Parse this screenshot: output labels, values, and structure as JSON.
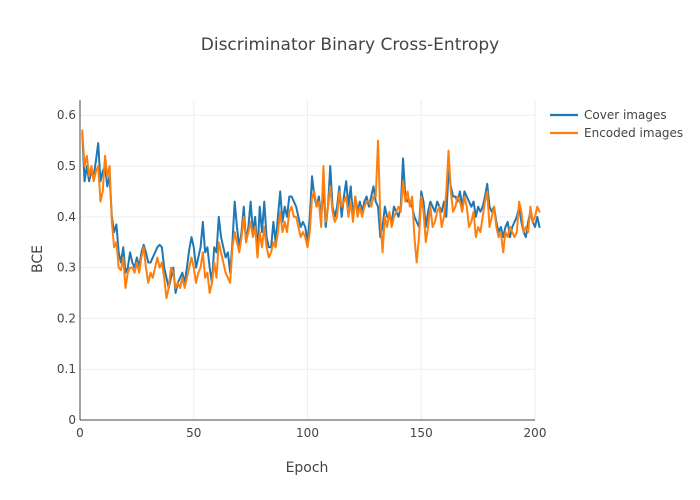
{
  "chart_data": {
    "type": "line",
    "title": "Discriminator Binary Cross-Entropy",
    "xlabel": "Epoch",
    "ylabel": "BCE",
    "xlim": [
      0,
      200
    ],
    "ylim": [
      0,
      0.63
    ],
    "x_ticks": [
      "0",
      "50",
      "100",
      "150",
      "200"
    ],
    "y_ticks": [
      "0",
      "0.1",
      "0.2",
      "0.3",
      "0.4",
      "0.5",
      "0.6"
    ],
    "grid": true,
    "legend_position": "top-right",
    "series": [
      {
        "name": "Cover images",
        "color": "#1f77b4",
        "values": [
          0.565,
          0.47,
          0.5,
          0.47,
          0.49,
          0.48,
          0.51,
          0.545,
          0.47,
          0.49,
          0.5,
          0.46,
          0.48,
          0.4,
          0.37,
          0.385,
          0.33,
          0.31,
          0.34,
          0.29,
          0.3,
          0.33,
          0.31,
          0.3,
          0.32,
          0.3,
          0.33,
          0.345,
          0.33,
          0.31,
          0.31,
          0.32,
          0.33,
          0.34,
          0.345,
          0.34,
          0.3,
          0.28,
          0.26,
          0.28,
          0.3,
          0.25,
          0.27,
          0.28,
          0.29,
          0.27,
          0.3,
          0.335,
          0.36,
          0.34,
          0.3,
          0.32,
          0.34,
          0.39,
          0.33,
          0.34,
          0.3,
          0.27,
          0.34,
          0.33,
          0.4,
          0.36,
          0.34,
          0.32,
          0.33,
          0.29,
          0.35,
          0.43,
          0.38,
          0.34,
          0.37,
          0.42,
          0.35,
          0.38,
          0.43,
          0.37,
          0.4,
          0.33,
          0.42,
          0.37,
          0.43,
          0.36,
          0.34,
          0.34,
          0.39,
          0.35,
          0.4,
          0.45,
          0.39,
          0.42,
          0.4,
          0.44,
          0.44,
          0.43,
          0.42,
          0.4,
          0.38,
          0.39,
          0.38,
          0.35,
          0.4,
          0.48,
          0.44,
          0.42,
          0.44,
          0.4,
          0.46,
          0.38,
          0.42,
          0.5,
          0.42,
          0.4,
          0.42,
          0.46,
          0.4,
          0.44,
          0.47,
          0.42,
          0.46,
          0.4,
          0.44,
          0.41,
          0.43,
          0.41,
          0.43,
          0.44,
          0.42,
          0.44,
          0.46,
          0.43,
          0.42,
          0.36,
          0.38,
          0.42,
          0.4,
          0.4,
          0.39,
          0.42,
          0.41,
          0.4,
          0.42,
          0.515,
          0.44,
          0.43,
          0.43,
          0.42,
          0.4,
          0.39,
          0.38,
          0.45,
          0.43,
          0.38,
          0.41,
          0.43,
          0.42,
          0.41,
          0.43,
          0.42,
          0.41,
          0.43,
          0.4,
          0.49,
          0.46,
          0.44,
          0.44,
          0.43,
          0.45,
          0.42,
          0.45,
          0.44,
          0.43,
          0.42,
          0.43,
          0.4,
          0.42,
          0.41,
          0.42,
          0.44,
          0.465,
          0.42,
          0.41,
          0.42,
          0.39,
          0.37,
          0.38,
          0.36,
          0.38,
          0.39,
          0.36,
          0.38,
          0.39,
          0.4,
          0.42,
          0.39,
          0.37,
          0.36,
          0.39,
          0.41,
          0.39,
          0.38,
          0.4,
          0.38
        ]
      },
      {
        "name": "Encoded images",
        "color": "#ff7f0e",
        "values": [
          0.57,
          0.5,
          0.52,
          0.48,
          0.5,
          0.47,
          0.49,
          0.5,
          0.43,
          0.45,
          0.52,
          0.48,
          0.5,
          0.39,
          0.34,
          0.35,
          0.3,
          0.295,
          0.32,
          0.26,
          0.29,
          0.3,
          0.3,
          0.29,
          0.31,
          0.29,
          0.32,
          0.34,
          0.3,
          0.27,
          0.29,
          0.28,
          0.3,
          0.32,
          0.3,
          0.31,
          0.28,
          0.24,
          0.26,
          0.3,
          0.29,
          0.26,
          0.27,
          0.26,
          0.28,
          0.26,
          0.28,
          0.3,
          0.32,
          0.3,
          0.27,
          0.29,
          0.3,
          0.33,
          0.28,
          0.29,
          0.25,
          0.27,
          0.31,
          0.28,
          0.35,
          0.33,
          0.31,
          0.29,
          0.28,
          0.27,
          0.34,
          0.37,
          0.35,
          0.33,
          0.36,
          0.4,
          0.35,
          0.37,
          0.39,
          0.36,
          0.38,
          0.32,
          0.37,
          0.34,
          0.38,
          0.34,
          0.32,
          0.33,
          0.35,
          0.34,
          0.37,
          0.41,
          0.37,
          0.39,
          0.37,
          0.41,
          0.42,
          0.4,
          0.4,
          0.38,
          0.36,
          0.37,
          0.36,
          0.34,
          0.37,
          0.44,
          0.45,
          0.42,
          0.43,
          0.38,
          0.5,
          0.39,
          0.42,
          0.46,
          0.41,
          0.39,
          0.4,
          0.45,
          0.42,
          0.43,
          0.44,
          0.4,
          0.43,
          0.39,
          0.44,
          0.4,
          0.42,
          0.4,
          0.42,
          0.43,
          0.43,
          0.42,
          0.44,
          0.44,
          0.55,
          0.4,
          0.33,
          0.4,
          0.38,
          0.41,
          0.38,
          0.4,
          0.41,
          0.42,
          0.41,
          0.47,
          0.43,
          0.45,
          0.42,
          0.44,
          0.36,
          0.31,
          0.36,
          0.44,
          0.41,
          0.35,
          0.38,
          0.42,
          0.38,
          0.39,
          0.41,
          0.42,
          0.38,
          0.4,
          0.45,
          0.53,
          0.45,
          0.41,
          0.42,
          0.44,
          0.43,
          0.41,
          0.44,
          0.42,
          0.38,
          0.39,
          0.41,
          0.36,
          0.38,
          0.37,
          0.4,
          0.43,
          0.45,
          0.38,
          0.4,
          0.42,
          0.38,
          0.36,
          0.37,
          0.33,
          0.37,
          0.36,
          0.38,
          0.37,
          0.36,
          0.37,
          0.43,
          0.41,
          0.37,
          0.38,
          0.37,
          0.42,
          0.39,
          0.4,
          0.42,
          0.41
        ]
      }
    ]
  }
}
